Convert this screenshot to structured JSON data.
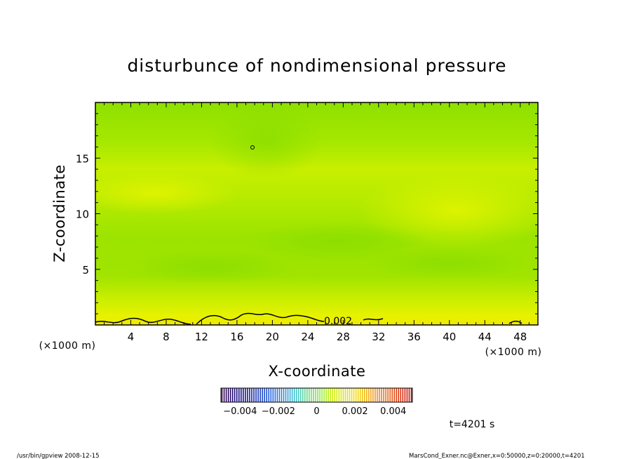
{
  "chart_data": {
    "type": "heatmap",
    "title": "disturbunce of nondimensional pressure",
    "xlabel": "X-coordinate",
    "ylabel": "Z-coordinate",
    "x_unit": "(×1000 m)",
    "y_unit": "(×1000 m)",
    "xlim": [
      0,
      50
    ],
    "ylim": [
      0,
      20
    ],
    "x_ticks": [
      "4",
      "8",
      "12",
      "16",
      "20",
      "24",
      "28",
      "32",
      "36",
      "40",
      "44",
      "48"
    ],
    "y_ticks": [
      "5",
      "10",
      "15"
    ],
    "grid": false,
    "colorbar": {
      "range": [
        -0.005,
        0.005
      ],
      "tick_labels": [
        "−0.004",
        "−0.002",
        "0",
        "0.002",
        "0.004"
      ]
    },
    "contour_label": "0.002",
    "field_summary": [
      {
        "z": 1,
        "value": 0.0021
      },
      {
        "z": 3,
        "value": 0.0012
      },
      {
        "z": 8,
        "value": 0.0009
      },
      {
        "z": 12,
        "value": 0.0014
      },
      {
        "z": 16,
        "value": 0.001
      },
      {
        "z": 19,
        "value": 0.0007
      }
    ]
  },
  "annotations": {
    "time": "t=4201 s",
    "footer_left": "/usr/bin/gpview   2008-12-15",
    "footer_right": "MarsCond_Exner.nc@Exner,x=0:50000,z=0:20000,t=4201"
  }
}
